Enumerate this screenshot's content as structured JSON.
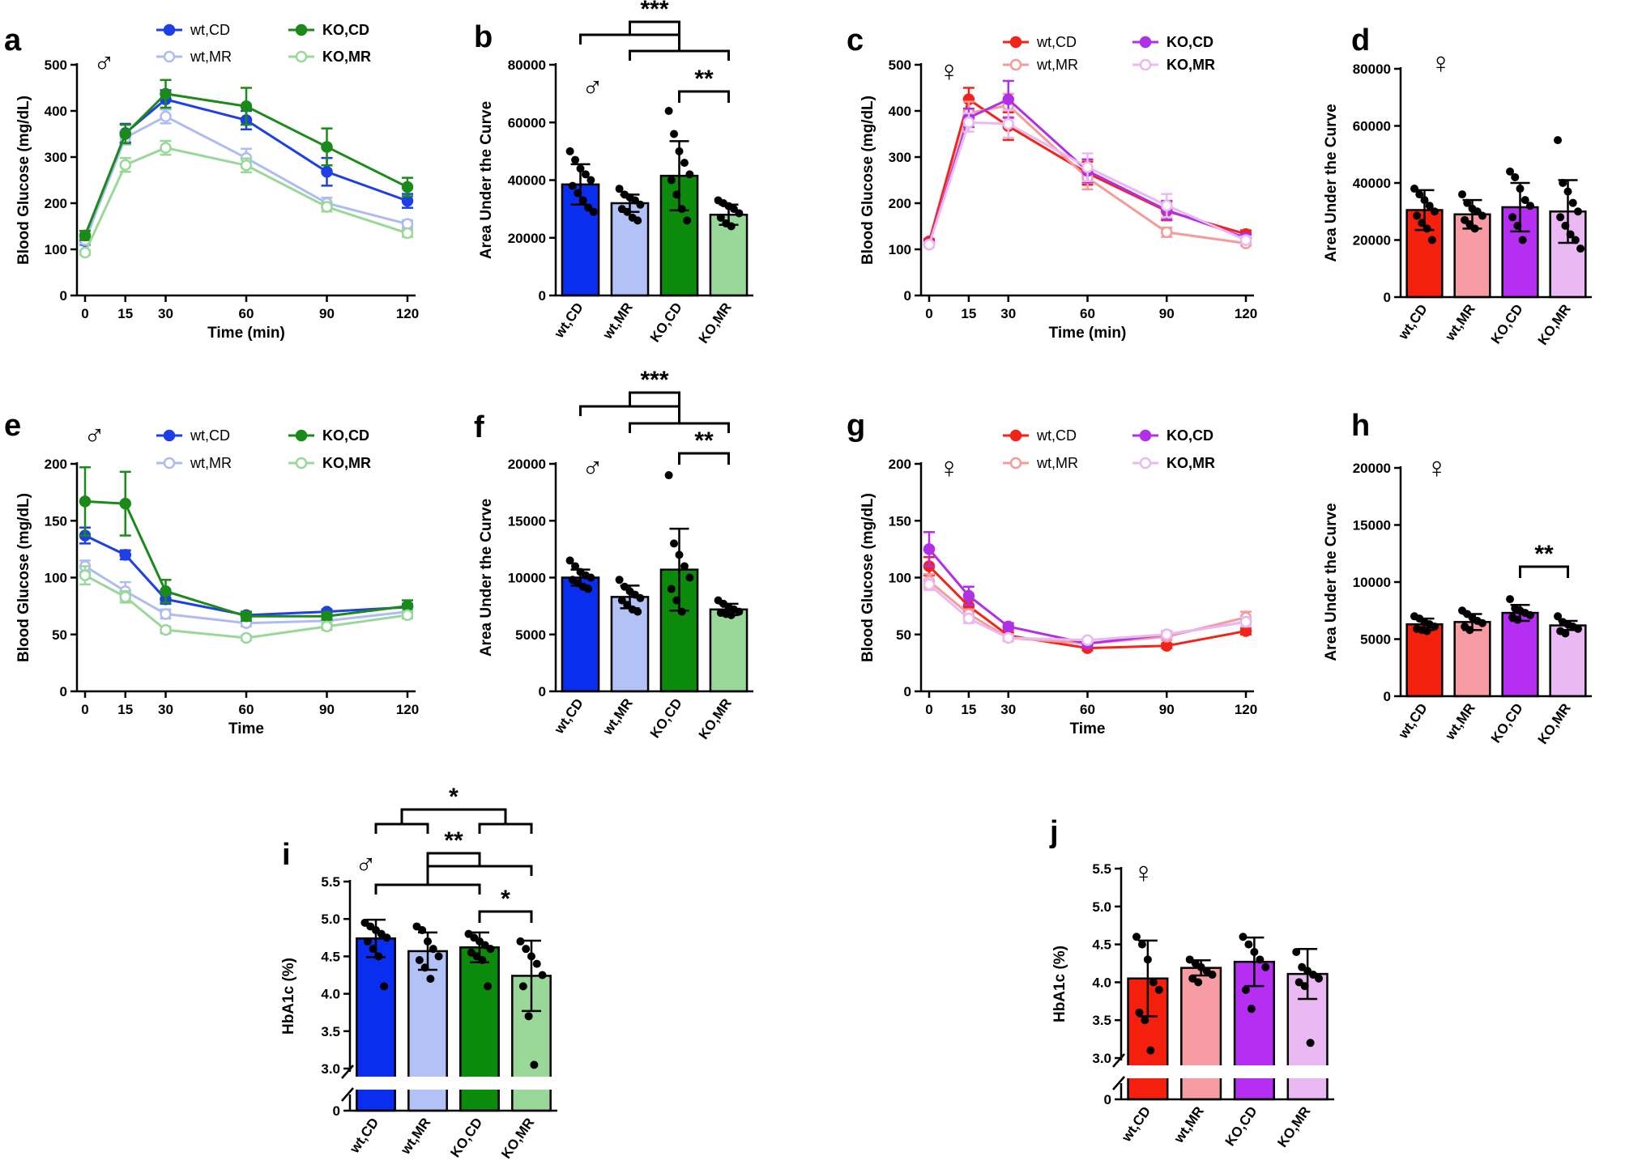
{
  "figure": {
    "male_symbol": "♂",
    "female_symbol": "♀"
  },
  "chart_data": [
    {
      "id": "a",
      "type": "line",
      "panel_label": "a",
      "sex": "male",
      "xlabel": "Time (min)",
      "ylabel": "Blood Glucose (mg/dL)",
      "x": [
        0,
        15,
        30,
        60,
        90,
        120
      ],
      "xticks": [
        "0",
        "15",
        "30",
        "60",
        "90",
        "120"
      ],
      "ylim": [
        0,
        500
      ],
      "yticks": [
        0,
        100,
        200,
        300,
        400,
        500
      ],
      "series": [
        {
          "name": "wt,CD",
          "color": "#1f3fe6",
          "filled": true,
          "values": [
            118,
            352,
            425,
            380,
            268,
            205
          ],
          "err": [
            8,
            20,
            20,
            20,
            30,
            15
          ]
        },
        {
          "name": "wt,MR",
          "color": "#aebcf2",
          "filled": false,
          "values": [
            120,
            342,
            388,
            298,
            200,
            155
          ],
          "err": [
            8,
            15,
            15,
            20,
            12,
            8
          ]
        },
        {
          "name": "KO,CD",
          "color": "#1a8a1a",
          "filled": true,
          "values": [
            130,
            350,
            437,
            410,
            322,
            235
          ],
          "err": [
            10,
            20,
            30,
            40,
            40,
            20
          ]
        },
        {
          "name": "KO,MR",
          "color": "#9ad89a",
          "filled": false,
          "values": [
            93,
            283,
            320,
            282,
            192,
            135
          ],
          "err": [
            5,
            15,
            15,
            15,
            10,
            8
          ]
        }
      ],
      "legend_order": [
        "wt,CD",
        "KO,CD",
        "wt,MR",
        "KO,MR"
      ]
    },
    {
      "id": "b",
      "type": "bar",
      "panel_label": "b",
      "sex": "male",
      "categories": [
        "wt,CD",
        "wt,MR",
        "KO,CD",
        "KO,MR"
      ],
      "values": [
        38500,
        32000,
        41500,
        28000
      ],
      "err": [
        7000,
        3000,
        12000,
        3500
      ],
      "colors": [
        "#0a2ef0",
        "#b3c2f6",
        "#0b8a0b",
        "#9ad89a"
      ],
      "points": [
        [
          50000,
          47000,
          44000,
          42000,
          40000,
          38000,
          35500,
          33000,
          30500,
          29000
        ],
        [
          37000,
          35000,
          34000,
          33000,
          31500,
          30000,
          29000,
          27000,
          26000
        ],
        [
          64000,
          56000,
          50000,
          46000,
          42000,
          40000,
          35000,
          30000,
          26000
        ],
        [
          33000,
          32000,
          31000,
          30000,
          28500,
          27000,
          25000,
          24000
        ]
      ],
      "ylabel": "Area Under the Curve",
      "ylim": [
        0,
        80000
      ],
      "yticks": [
        0,
        20000,
        40000,
        60000,
        80000
      ],
      "significance": [
        "***",
        "**"
      ]
    },
    {
      "id": "c",
      "type": "line",
      "panel_label": "c",
      "sex": "female",
      "xlabel": "Time (min)",
      "ylabel": "Blood Glucose (mg/dL)",
      "x": [
        0,
        15,
        30,
        60,
        90,
        120
      ],
      "xticks": [
        "0",
        "15",
        "30",
        "60",
        "90",
        "120"
      ],
      "ylim": [
        0,
        500
      ],
      "yticks": [
        0,
        100,
        200,
        300,
        400,
        500
      ],
      "series": [
        {
          "name": "wt,CD",
          "color": "#f2231a",
          "filled": true,
          "values": [
            117,
            425,
            367,
            265,
            183,
            133
          ],
          "err": [
            5,
            25,
            30,
            25,
            20,
            8
          ]
        },
        {
          "name": "wt,MR",
          "color": "#f59b9b",
          "filled": false,
          "values": [
            110,
            395,
            412,
            255,
            137,
            113
          ],
          "err": [
            5,
            25,
            25,
            25,
            10,
            5
          ]
        },
        {
          "name": "KO,CD",
          "color": "#b030e8",
          "filled": true,
          "values": [
            112,
            385,
            425,
            270,
            185,
            125
          ],
          "err": [
            5,
            20,
            40,
            25,
            20,
            8
          ]
        },
        {
          "name": "KO,MR",
          "color": "#e9b9ef",
          "filled": false,
          "values": [
            110,
            375,
            372,
            278,
            195,
            120
          ],
          "err": [
            5,
            20,
            30,
            30,
            25,
            8
          ]
        }
      ],
      "legend_order": [
        "wt,CD",
        "KO,CD",
        "wt,MR",
        "KO,MR"
      ]
    },
    {
      "id": "d",
      "type": "bar",
      "panel_label": "d",
      "sex": "female",
      "categories": [
        "wt,CD",
        "wt,MR",
        "KO,CD",
        "KO,MR"
      ],
      "values": [
        30500,
        29000,
        31500,
        30000
      ],
      "err": [
        7000,
        5000,
        8500,
        11000
      ],
      "colors": [
        "#f4200d",
        "#f69ca2",
        "#b52ef2",
        "#eab8f2"
      ],
      "points": [
        [
          38000,
          36000,
          34000,
          32000,
          30000,
          28500,
          26000,
          24000,
          20000
        ],
        [
          36000,
          33000,
          31000,
          30000,
          28500,
          27000,
          25500,
          24000
        ],
        [
          44000,
          42000,
          38000,
          34000,
          32000,
          28000,
          25000,
          20000
        ],
        [
          55000,
          40000,
          37000,
          33000,
          30000,
          28000,
          25000,
          22000,
          20000,
          17000
        ]
      ],
      "ylabel": "Area Under the Curve",
      "ylim": [
        0,
        80000
      ],
      "yticks": [
        0,
        20000,
        40000,
        60000,
        80000
      ],
      "significance": []
    },
    {
      "id": "e",
      "type": "line",
      "panel_label": "e",
      "sex": "male",
      "xlabel": "Time",
      "ylabel": "Blood Glucose (mg/dL)",
      "x": [
        0,
        15,
        30,
        60,
        90,
        120
      ],
      "xticks": [
        "0",
        "15",
        "30",
        "60",
        "90",
        "120"
      ],
      "ylim": [
        0,
        200
      ],
      "yticks": [
        0,
        50,
        100,
        150,
        200
      ],
      "series": [
        {
          "name": "wt,CD",
          "color": "#1f3fe6",
          "filled": true,
          "values": [
            137,
            120,
            81,
            67,
            70,
            74
          ],
          "err": [
            7,
            4,
            4,
            3,
            2,
            3
          ]
        },
        {
          "name": "wt,MR",
          "color": "#aebcf2",
          "filled": false,
          "values": [
            110,
            88,
            68,
            60,
            62,
            70
          ],
          "err": [
            5,
            8,
            4,
            3,
            3,
            3
          ]
        },
        {
          "name": "KO,CD",
          "color": "#1a8a1a",
          "filled": true,
          "values": [
            167,
            165,
            88,
            66,
            66,
            75
          ],
          "err": [
            30,
            28,
            10,
            4,
            3,
            5
          ]
        },
        {
          "name": "KO,MR",
          "color": "#9ad89a",
          "filled": false,
          "values": [
            102,
            83,
            54,
            47,
            57,
            67
          ],
          "err": [
            8,
            5,
            3,
            2,
            3,
            3
          ]
        }
      ],
      "legend_order": [
        "wt,CD",
        "KO,CD",
        "wt,MR",
        "KO,MR"
      ]
    },
    {
      "id": "f",
      "type": "bar",
      "panel_label": "f",
      "sex": "male",
      "categories": [
        "wt,CD",
        "wt,MR",
        "KO,CD",
        "KO,MR"
      ],
      "values": [
        10000,
        8300,
        10700,
        7200
      ],
      "err": [
        700,
        1000,
        3600,
        500
      ],
      "colors": [
        "#0a2ef0",
        "#b3c2f6",
        "#0b8a0b",
        "#9ad89a"
      ],
      "points": [
        [
          11500,
          11000,
          10500,
          10200,
          10000,
          9800,
          9500,
          9200,
          9000
        ],
        [
          9800,
          9200,
          8800,
          8500,
          8200,
          8000,
          7600,
          7200,
          7000
        ],
        [
          19000,
          13000,
          12000,
          11000,
          10000,
          9000,
          8000,
          7000
        ],
        [
          8000,
          7700,
          7400,
          7200,
          7000,
          6900,
          6800,
          6700
        ]
      ],
      "ylabel": "Area Under the Curve",
      "ylim": [
        0,
        20000
      ],
      "yticks": [
        0,
        5000,
        10000,
        15000,
        20000
      ],
      "significance": [
        "***",
        "**"
      ]
    },
    {
      "id": "g",
      "type": "line",
      "panel_label": "g",
      "sex": "female",
      "xlabel": "Time",
      "ylabel": "Blood Glucose (mg/dL)",
      "x": [
        0,
        15,
        30,
        60,
        90,
        120
      ],
      "xticks": [
        "0",
        "15",
        "30",
        "60",
        "90",
        "120"
      ],
      "ylim": [
        0,
        200
      ],
      "yticks": [
        0,
        50,
        100,
        150,
        200
      ],
      "series": [
        {
          "name": "wt,CD",
          "color": "#f2231a",
          "filled": true,
          "values": [
            110,
            75,
            49,
            38,
            40,
            53
          ],
          "err": [
            8,
            5,
            3,
            2,
            2,
            3
          ]
        },
        {
          "name": "wt,MR",
          "color": "#f59b9b",
          "filled": false,
          "values": [
            97,
            68,
            47,
            42,
            48,
            65
          ],
          "err": [
            6,
            4,
            3,
            2,
            3,
            5
          ]
        },
        {
          "name": "KO,CD",
          "color": "#b030e8",
          "filled": true,
          "values": [
            125,
            84,
            57,
            42,
            50,
            61
          ],
          "err": [
            15,
            8,
            3,
            3,
            3,
            4
          ]
        },
        {
          "name": "KO,MR",
          "color": "#e9b9ef",
          "filled": false,
          "values": [
            94,
            64,
            47,
            45,
            50,
            61
          ],
          "err": [
            5,
            4,
            3,
            2,
            3,
            4
          ]
        }
      ],
      "legend_order": [
        "wt,CD",
        "KO,CD",
        "wt,MR",
        "KO,MR"
      ]
    },
    {
      "id": "h",
      "type": "bar",
      "panel_label": "h",
      "sex": "female",
      "categories": [
        "wt,CD",
        "wt,MR",
        "KO,CD",
        "KO,MR"
      ],
      "values": [
        6300,
        6500,
        7300,
        6200
      ],
      "err": [
        500,
        700,
        700,
        400
      ],
      "colors": [
        "#f4200d",
        "#f69ca2",
        "#b52ef2",
        "#eab8f2"
      ],
      "points": [
        [
          7000,
          6800,
          6500,
          6300,
          6100,
          5900,
          5800,
          5700
        ],
        [
          7500,
          7200,
          6900,
          6600,
          6400,
          6100,
          5800
        ],
        [
          8500,
          7700,
          7500,
          7300,
          7100,
          6900,
          6700
        ],
        [
          7000,
          6500,
          6300,
          6100,
          5900,
          5700,
          5500
        ]
      ],
      "ylabel": "Area Under the Curve",
      "ylim": [
        0,
        20000
      ],
      "yticks": [
        0,
        5000,
        10000,
        15000,
        20000
      ],
      "significance": [
        "**"
      ]
    },
    {
      "id": "i",
      "type": "bar",
      "panel_label": "i",
      "sex": "male",
      "categories": [
        "wt,CD",
        "wt,MR",
        "KO,CD",
        "KO,MR"
      ],
      "values": [
        4.74,
        4.57,
        4.62,
        4.24
      ],
      "err": [
        0.25,
        0.25,
        0.2,
        0.47
      ],
      "colors": [
        "#0a2ef0",
        "#b3c2f6",
        "#0b8a0b",
        "#9ad89a"
      ],
      "points": [
        [
          4.95,
          4.9,
          4.85,
          4.8,
          4.75,
          4.7,
          4.6,
          4.5,
          4.1
        ],
        [
          4.9,
          4.85,
          4.7,
          4.6,
          4.5,
          4.45,
          4.35,
          4.2
        ],
        [
          4.8,
          4.75,
          4.7,
          4.65,
          4.6,
          4.55,
          4.5,
          4.45,
          4.1
        ],
        [
          4.7,
          4.6,
          4.5,
          4.4,
          4.25,
          4.1,
          3.7,
          3.05
        ]
      ],
      "ylabel": "HbA1c (%)",
      "ylim": [
        3.0,
        5.5
      ],
      "yticks": [
        3.0,
        3.5,
        4.0,
        4.5,
        5.0,
        5.5
      ],
      "broken_axis_zero": "0",
      "significance": [
        "*",
        "**",
        "*"
      ]
    },
    {
      "id": "j",
      "type": "bar",
      "panel_label": "j",
      "sex": "female",
      "categories": [
        "wt,CD",
        "wt,MR",
        "KO,CD",
        "KO,MR"
      ],
      "values": [
        4.05,
        4.19,
        4.27,
        4.11
      ],
      "err": [
        0.5,
        0.1,
        0.32,
        0.33
      ],
      "colors": [
        "#f4200d",
        "#f69ca2",
        "#b52ef2",
        "#eab8f2"
      ],
      "points": [
        [
          4.6,
          4.5,
          4.3,
          4.0,
          3.9,
          3.6,
          3.5,
          3.1
        ],
        [
          4.3,
          4.25,
          4.2,
          4.15,
          4.1,
          4.05,
          4.0
        ],
        [
          4.6,
          4.5,
          4.4,
          4.3,
          4.2,
          3.9,
          3.65
        ],
        [
          4.4,
          4.2,
          4.15,
          4.1,
          4.05,
          4.0,
          3.95,
          3.2
        ]
      ],
      "ylabel": "HbA1c (%)",
      "ylim": [
        3.0,
        5.5
      ],
      "yticks": [
        3.0,
        3.5,
        4.0,
        4.5,
        5.0,
        5.5
      ],
      "broken_axis_zero": "0",
      "significance": []
    }
  ]
}
